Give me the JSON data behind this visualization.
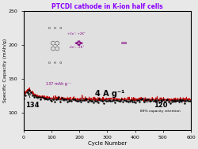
{
  "title": "PTCDI cathode in K-ion half cells",
  "title_color": "#8B00FF",
  "xlabel": "Cycle Number",
  "ylabel": "Specific Capacity (mAh/g)",
  "xlim": [
    0,
    600
  ],
  "ylim": [
    75,
    250
  ],
  "yticks": [
    100,
    150,
    200,
    250
  ],
  "xticks": [
    0,
    100,
    200,
    300,
    400,
    500,
    600
  ],
  "bg_color": "#e8e8e8",
  "plot_bg_color": "#e0e0e0",
  "label_134": "134",
  "label_120": "120",
  "label_137": "137 mAh g⁻¹",
  "label_4A": "4 A g⁻¹",
  "label_89": "89% capacity retention",
  "reaction_text1": "+2e⁻; +2K⁺",
  "reaction_text2": "-2e⁻; -2K⁺",
  "peak_cycle": 20,
  "peak_capacity": 137,
  "start_capacity": 134,
  "end_capacity": 120,
  "line_color_red": "#cc0000",
  "line_color_black": "#111111"
}
